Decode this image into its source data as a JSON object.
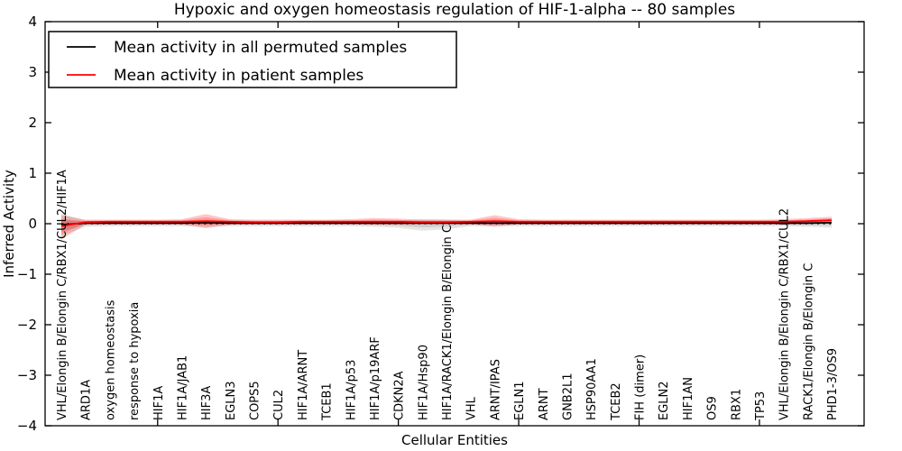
{
  "title": "Hypoxic and oxygen homeostasis regulation of HIF-1-alpha -- 80 samples",
  "chart_data": {
    "type": "line",
    "title": "Hypoxic and oxygen homeostasis regulation of HIF-1-alpha -- 80 samples",
    "xlabel": "Cellular Entities",
    "ylabel": "Inferred Activity",
    "ylim": [
      -4,
      4
    ],
    "yticks": [
      4,
      3,
      2,
      1,
      0,
      -1,
      -2,
      -3,
      -4
    ],
    "grid": false,
    "zero_line": {
      "style": "dotted",
      "color": "#000000",
      "y": 0
    },
    "legend": {
      "position": "upper left",
      "entries": [
        {
          "label": "Mean activity in all permuted samples",
          "color": "#000000"
        },
        {
          "label": "Mean activity in patient samples",
          "color": "#ff0000"
        }
      ]
    },
    "categories": [
      "VHL/Elongin B/Elongin C/RBX1/CUL2/HIF1A",
      "ARD1A",
      "oxygen homeostasis",
      "response to hypoxia",
      "HIF1A",
      "HIF1A/JAB1",
      "HIF3A",
      "EGLN3",
      "COPS5",
      "CUL2",
      "HIF1A/ARNT",
      "TCEB1",
      "HIF1A/p53",
      "HIF1A/p19ARF",
      "CDKN2A",
      "HIF1A/Hsp90",
      "HIF1A/RACK1/Elongin B/Elongin C",
      "VHL",
      "ARNT/IPAS",
      "EGLN1",
      "ARNT",
      "GNB2L1",
      "HSP90AA1",
      "TCEB2",
      "FIH (dimer)",
      "EGLN2",
      "HIF1AN",
      "OS9",
      "RBX1",
      "TP53",
      "VHL/Elongin B/Elongin C/RBX1/CUL2",
      "RACK1/Elongin B/Elongin C",
      "PHD1-3/OS9"
    ],
    "series": [
      {
        "name": "Mean activity in all permuted samples",
        "color": "#000000",
        "band_color": "#000000",
        "band_alpha": 0.1,
        "mean": [
          -0.02,
          0.01,
          0.01,
          0.01,
          0.01,
          0.01,
          0.02,
          0.01,
          0.01,
          0.01,
          0.01,
          0.01,
          0.01,
          0.01,
          0.01,
          0.01,
          0.01,
          0.01,
          0.01,
          0.01,
          0.01,
          0.01,
          0.01,
          0.01,
          0.01,
          0.01,
          0.01,
          0.01,
          0.01,
          0.01,
          0.01,
          0.01,
          0.02
        ],
        "band_upper": [
          0.2,
          0.06,
          0.05,
          0.05,
          0.05,
          0.05,
          0.07,
          0.05,
          0.05,
          0.05,
          0.05,
          0.05,
          0.05,
          0.06,
          0.06,
          0.09,
          0.08,
          0.05,
          0.06,
          0.05,
          0.05,
          0.05,
          0.05,
          0.05,
          0.05,
          0.05,
          0.05,
          0.05,
          0.05,
          0.05,
          0.05,
          0.06,
          0.08
        ],
        "band_lower": [
          -0.24,
          -0.06,
          -0.05,
          -0.05,
          -0.05,
          -0.05,
          -0.07,
          -0.05,
          -0.05,
          -0.05,
          -0.05,
          -0.05,
          -0.05,
          -0.06,
          -0.08,
          -0.14,
          -0.11,
          -0.05,
          -0.05,
          -0.05,
          -0.05,
          -0.05,
          -0.05,
          -0.05,
          -0.05,
          -0.05,
          -0.05,
          -0.05,
          -0.05,
          -0.05,
          -0.05,
          -0.06,
          -0.08
        ]
      },
      {
        "name": "Mean activity in patient samples",
        "color": "#ff0000",
        "band_color": "#ff0000",
        "band_alpha": 0.22,
        "mean": [
          -0.05,
          0.03,
          0.04,
          0.04,
          0.04,
          0.04,
          0.05,
          0.04,
          0.03,
          0.03,
          0.04,
          0.04,
          0.04,
          0.04,
          0.04,
          0.03,
          0.03,
          0.04,
          0.05,
          0.04,
          0.04,
          0.04,
          0.04,
          0.04,
          0.04,
          0.04,
          0.04,
          0.04,
          0.04,
          0.04,
          0.04,
          0.05,
          0.07
        ],
        "band_upper": [
          0.17,
          0.08,
          0.08,
          0.08,
          0.08,
          0.09,
          0.19,
          0.09,
          0.08,
          0.08,
          0.08,
          0.08,
          0.09,
          0.11,
          0.1,
          0.08,
          0.08,
          0.08,
          0.17,
          0.09,
          0.08,
          0.08,
          0.08,
          0.08,
          0.08,
          0.08,
          0.08,
          0.08,
          0.08,
          0.08,
          0.09,
          0.11,
          0.14
        ],
        "band_lower": [
          -0.31,
          -0.02,
          -0.01,
          -0.01,
          -0.01,
          -0.01,
          -0.09,
          -0.02,
          -0.01,
          -0.01,
          -0.01,
          -0.01,
          -0.01,
          -0.02,
          -0.02,
          -0.01,
          -0.01,
          -0.01,
          -0.06,
          -0.01,
          -0.01,
          -0.01,
          -0.01,
          -0.01,
          -0.01,
          -0.01,
          -0.01,
          -0.01,
          -0.01,
          -0.01,
          -0.01,
          0.0,
          0.01
        ]
      }
    ]
  }
}
